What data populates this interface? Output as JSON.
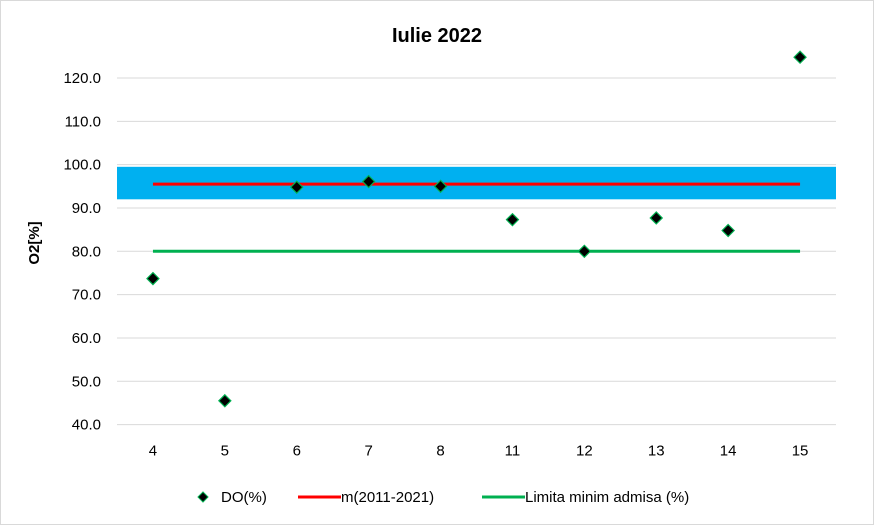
{
  "chart_data": {
    "type": "scatter",
    "title": "Iulie  2022",
    "xlabel": "",
    "ylabel": "O2[%]",
    "categories": [
      "4",
      "5",
      "6",
      "7",
      "8",
      "11",
      "12",
      "13",
      "14",
      "15"
    ],
    "ylim": [
      40,
      125
    ],
    "y_ticks": [
      "40.0",
      "50.0",
      "60.0",
      "70.0",
      "80.0",
      "90.0",
      "100.0",
      "110.0",
      "120.0"
    ],
    "grid": true,
    "legend_position": "bottom",
    "band": {
      "from": 92,
      "to": 99.5,
      "color": "#00b0f0"
    },
    "series": [
      {
        "name": "DO(%)",
        "kind": "scatter",
        "color": "#000000",
        "marker_edge": "#00b050",
        "values": [
          73.7,
          45.5,
          94.8,
          96.1,
          95.0,
          87.3,
          80.0,
          87.7,
          84.8,
          124.8
        ]
      },
      {
        "name": "m(2011-2021)",
        "kind": "line",
        "color": "#ff0000",
        "values": [
          95.5,
          95.5,
          95.5,
          95.5,
          95.5,
          95.5,
          95.5,
          95.5,
          95.5,
          95.5
        ]
      },
      {
        "name": "Limita minim admisa (%)",
        "kind": "line",
        "color": "#00b050",
        "values": [
          80,
          80,
          80,
          80,
          80,
          80,
          80,
          80,
          80,
          80
        ]
      }
    ]
  }
}
